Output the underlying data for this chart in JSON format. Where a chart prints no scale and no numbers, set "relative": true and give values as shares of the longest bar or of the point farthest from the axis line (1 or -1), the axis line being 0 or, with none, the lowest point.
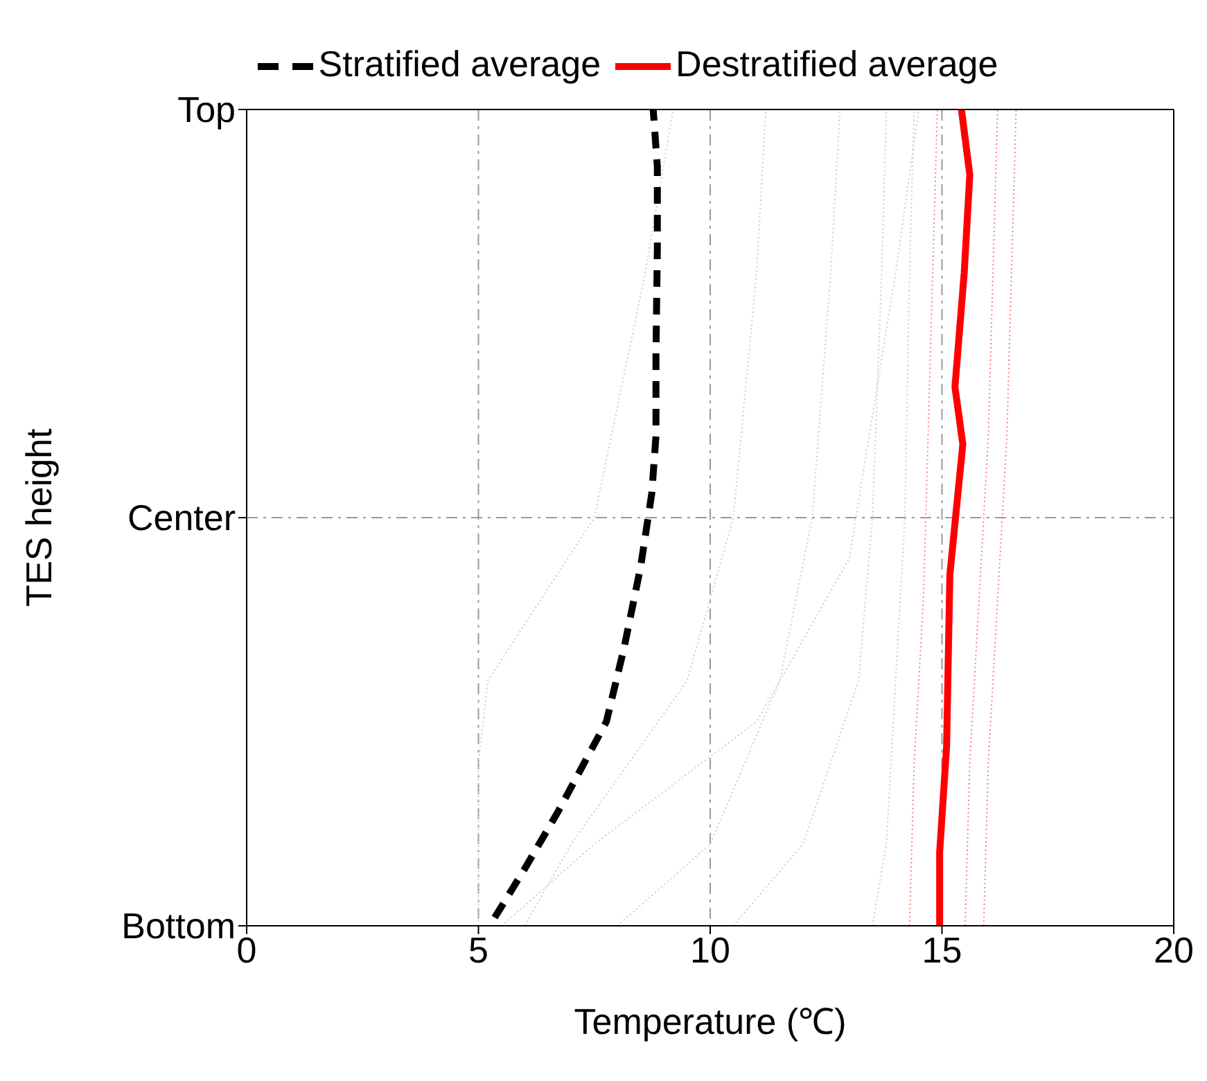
{
  "chart_data": {
    "type": "line",
    "xlabel": "Temperature (℃)",
    "ylabel": "TES height",
    "xlim": [
      0,
      20
    ],
    "xticks": [
      0,
      5,
      10,
      15,
      20
    ],
    "relative": true,
    "annotations": [
      "Bottom",
      "Center",
      "Top"
    ],
    "grid": true,
    "legend": "top",
    "marker": "none",
    "series": [
      {
        "color": "#cccccc",
        "line_style": "dotted",
        "x": [
          5.0,
          5.0,
          5.2,
          7.5,
          8.6,
          9.2
        ],
        "values": [
          0,
          0.2,
          0.3,
          0.5,
          0.8,
          1
        ]
      },
      {
        "color": "#cccccc",
        "line_style": "dotted",
        "x": [
          6.0,
          7.0,
          9.5,
          10.5,
          11.0,
          11.2
        ],
        "values": [
          0,
          0.1,
          0.3,
          0.5,
          0.8,
          1
        ]
      },
      {
        "color": "#cccccc",
        "line_style": "dotted",
        "x": [
          8.0,
          10.0,
          11.5,
          12.2,
          12.6,
          12.8
        ],
        "values": [
          0,
          0.1,
          0.3,
          0.5,
          0.8,
          1
        ]
      },
      {
        "color": "#cccccc",
        "line_style": "dotted",
        "x": [
          10.5,
          12.0,
          13.2,
          13.5,
          13.7,
          13.8
        ],
        "values": [
          0,
          0.1,
          0.3,
          0.5,
          0.8,
          1
        ]
      },
      {
        "color": "#cccccc",
        "line_style": "dotted",
        "x": [
          13.5,
          13.8,
          14.0,
          14.2,
          14.3,
          14.4
        ],
        "values": [
          0,
          0.1,
          0.3,
          0.5,
          0.8,
          1
        ]
      },
      {
        "color": "#cccccc",
        "line_style": "dotted",
        "x": [
          5.5,
          7.5,
          11.0,
          13.0,
          14.0,
          14.5
        ],
        "values": [
          0,
          0.1,
          0.25,
          0.45,
          0.8,
          1
        ]
      },
      {
        "color": "#ff8080",
        "line_style": "dotted",
        "x": [
          14.3,
          14.4,
          14.6,
          14.7,
          14.8,
          14.9
        ],
        "values": [
          0,
          0.2,
          0.4,
          0.6,
          0.8,
          1
        ]
      },
      {
        "color": "#ff8080",
        "line_style": "dotted",
        "x": [
          15.9,
          16.0,
          16.2,
          16.4,
          16.5,
          16.6
        ],
        "values": [
          0,
          0.2,
          0.4,
          0.6,
          0.8,
          1
        ]
      },
      {
        "color": "#ff8080",
        "line_style": "dotted",
        "x": [
          15.5,
          15.6,
          15.8,
          16.0,
          16.1,
          16.2
        ],
        "values": [
          0,
          0.2,
          0.4,
          0.6,
          0.8,
          1
        ]
      },
      {
        "name": "Stratified average",
        "color": "#000000",
        "line_style": "dashed",
        "x": [
          5.35,
          6.0,
          6.72,
          7.76,
          8.14,
          8.5,
          8.74,
          8.83,
          8.83,
          8.86,
          8.86,
          8.77
        ],
        "values": [
          0.01,
          0.07,
          0.14,
          0.25,
          0.34,
          0.44,
          0.53,
          0.6,
          0.7,
          0.83,
          0.93,
          1
        ]
      },
      {
        "name": "Destratified average",
        "color": "#ff0000",
        "line_style": "solid",
        "x": [
          14.95,
          14.95,
          15.1,
          15.17,
          15.45,
          15.28,
          15.48,
          15.6,
          15.42
        ],
        "values": [
          0,
          0.09,
          0.22,
          0.43,
          0.59,
          0.66,
          0.8,
          0.92,
          1
        ]
      }
    ]
  }
}
